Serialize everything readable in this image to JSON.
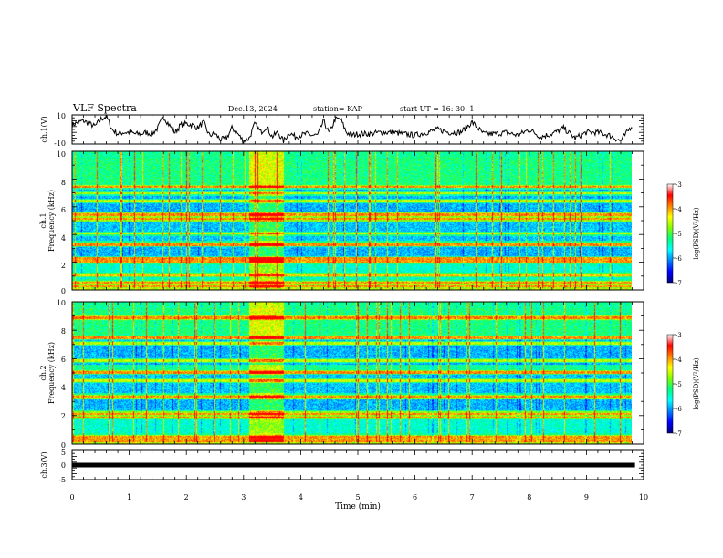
{
  "header": {
    "title": "VLF Spectra",
    "date": "Dec.13, 2024",
    "station": "station= KAP",
    "start": "start  UT =   16: 30: 1"
  },
  "colors": {
    "line": "#000000",
    "colormap": [
      "#000080",
      "#0000ff",
      "#0080ff",
      "#00ffff",
      "#00ff80",
      "#80ff00",
      "#ffff00",
      "#ff8000",
      "#ff0000",
      "#ffffff"
    ]
  },
  "chart_data": [
    {
      "type": "line",
      "panel": "ch1-waveform",
      "ylabel": "ch.1(V)",
      "ylim": [
        -10,
        10
      ],
      "yticks": [
        "10",
        "-10"
      ],
      "x": [
        0,
        0.1,
        0.2,
        0.3,
        0.4,
        0.5,
        0.6,
        0.7,
        0.8,
        0.9,
        1.0,
        1.1,
        1.2,
        1.3,
        1.4,
        1.5,
        1.6,
        1.7,
        1.8,
        1.9,
        2.0,
        2.1,
        2.2,
        2.3,
        2.4,
        2.5,
        2.6,
        2.7,
        2.8,
        2.9,
        3.0,
        3.1,
        3.2,
        3.3,
        3.4,
        3.5,
        3.6,
        3.7,
        3.8,
        3.9,
        4.0,
        4.1,
        4.2,
        4.3,
        4.4,
        4.5,
        4.6,
        4.7,
        4.8,
        4.9,
        5.0,
        5.2,
        5.4,
        5.6,
        5.8,
        6.0,
        6.2,
        6.4,
        6.6,
        6.8,
        7.0,
        7.2,
        7.4,
        7.6,
        7.8,
        8.0,
        8.2,
        8.4,
        8.6,
        8.8,
        9.0,
        9.2,
        9.4,
        9.6,
        9.8
      ],
      "y": [
        3,
        5,
        6,
        4,
        2,
        7,
        9,
        0,
        -3,
        -2,
        -2,
        -3,
        -3,
        -2,
        -3,
        1,
        9,
        3,
        -2,
        3,
        4,
        3,
        1,
        5,
        -4,
        -3,
        -7,
        -6,
        1,
        -3,
        -8,
        -6,
        4,
        -2,
        2,
        -5,
        -2,
        -8,
        -2,
        -5,
        -4,
        -3,
        -4,
        -4,
        6,
        -3,
        7,
        7,
        -2,
        -4,
        -3,
        -3,
        -2,
        -2,
        -3,
        -4,
        -2,
        0,
        -2,
        -2,
        5,
        -3,
        -3,
        -2,
        -4,
        0,
        -5,
        -3,
        1,
        -6,
        -2,
        -2,
        -4,
        -8,
        3
      ]
    },
    {
      "type": "heatmap",
      "panel": "ch1-spectrogram",
      "ylabel": "ch.1\nFrequency (kHz)",
      "ylim": [
        0,
        10
      ],
      "yticks": [
        "0",
        "2",
        "4",
        "6",
        "8",
        "10"
      ],
      "colorbar": {
        "label": "log(PSD)(V²/Hz)",
        "range": [
          -7,
          -3
        ],
        "ticks": [
          "-3",
          "-4",
          "-5",
          "-6",
          "-7"
        ]
      },
      "bands_khz": [
        0.3,
        0.55,
        1.1,
        2.1,
        2.3,
        3.3,
        4.1,
        5.15,
        5.45,
        6.45,
        7.0,
        7.45
      ],
      "burst_min": [
        3.1,
        3.7
      ]
    },
    {
      "type": "heatmap",
      "panel": "ch2-spectrogram",
      "ylabel": "ch.2\nFrequency (kHz)",
      "ylim": [
        0,
        10
      ],
      "yticks": [
        "0",
        "2",
        "4",
        "6",
        "8",
        "10"
      ],
      "colorbar": {
        "label": "log(PSD)(V²/Hz)",
        "range": [
          -7,
          -3
        ],
        "ticks": [
          "-3",
          "-4",
          "-5",
          "-6",
          "-7"
        ]
      },
      "bands_khz": [
        0.25,
        0.5,
        1.9,
        2.15,
        3.35,
        4.5,
        5.05,
        5.9,
        7.1,
        7.5,
        8.9
      ],
      "burst_min": [
        3.1,
        3.7
      ]
    },
    {
      "type": "line",
      "panel": "ch3-level",
      "ylabel": "ch.3(V)",
      "ylim": [
        -5,
        5
      ],
      "yticks": [
        "5",
        "0",
        "-5"
      ],
      "x": [
        0,
        9.85
      ],
      "y": [
        0,
        0
      ]
    }
  ],
  "xaxis": {
    "label": "Time (min)",
    "range": [
      0,
      10
    ],
    "ticks": [
      "0",
      "1",
      "2",
      "3",
      "4",
      "5",
      "6",
      "7",
      "8",
      "9",
      "10"
    ]
  }
}
